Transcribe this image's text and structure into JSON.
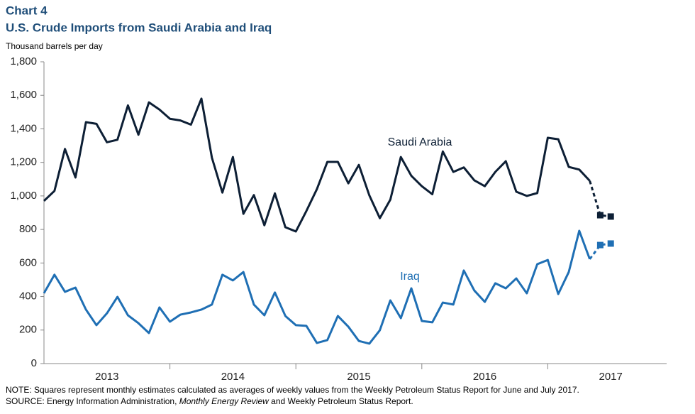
{
  "chart_data": {
    "type": "line",
    "title": "Chart 4",
    "subtitle": "U.S. Crude Imports from Saudi Arabia and Iraq",
    "y_label": "Thousand barrels per day",
    "categories": [
      null,
      null,
      null,
      null,
      null,
      null,
      "2013",
      null,
      null,
      null,
      null,
      null,
      null,
      null,
      null,
      null,
      null,
      null,
      "2014",
      null,
      null,
      null,
      null,
      null,
      null,
      null,
      null,
      null,
      null,
      null,
      "2015",
      null,
      null,
      null,
      null,
      null,
      null,
      null,
      null,
      null,
      null,
      null,
      "2016",
      null,
      null,
      null,
      null,
      null,
      null,
      null,
      null,
      null,
      null,
      null,
      "2017"
    ],
    "ylim": [
      0,
      1800
    ],
    "yticks": [
      0,
      200,
      400,
      600,
      800,
      {
        "value": 1000,
        "label": "1,000"
      },
      {
        "value": 1200,
        "label": "1,200"
      },
      {
        "value": 1400,
        "label": "1,400"
      },
      {
        "value": 1600,
        "label": "1,600"
      },
      {
        "value": 1800,
        "label": "1,800"
      }
    ],
    "series": [
      {
        "name": "Saudi Arabia",
        "color": "#0d1f35",
        "values": [
          970,
          1030,
          1280,
          1110,
          1440,
          1430,
          1320,
          1335,
          1540,
          1365,
          1558,
          1515,
          1460,
          1450,
          1425,
          1580,
          1228,
          1020,
          1232,
          893,
          1005,
          825,
          1015,
          813,
          788,
          910,
          1040,
          1203,
          1203,
          1075,
          1185,
          1003,
          867,
          978,
          1232,
          1120,
          1058,
          1010,
          1265,
          1143,
          1170,
          1093,
          1058,
          1143,
          1207,
          1025,
          1000,
          1017,
          1347,
          1338,
          1173,
          1157,
          1090,
          null,
          null
        ],
        "estimates": [
          null,
          null,
          null,
          null,
          null,
          null,
          null,
          null,
          null,
          null,
          null,
          null,
          null,
          null,
          null,
          null,
          null,
          null,
          null,
          null,
          null,
          null,
          null,
          null,
          null,
          null,
          null,
          null,
          null,
          null,
          null,
          null,
          null,
          null,
          null,
          null,
          null,
          null,
          null,
          null,
          null,
          null,
          null,
          null,
          null,
          null,
          null,
          null,
          null,
          null,
          null,
          null,
          null,
          885,
          877
        ]
      },
      {
        "name": "Iraq",
        "color": "#1f6fb4",
        "values": [
          420,
          530,
          428,
          453,
          322,
          229,
          300,
          398,
          288,
          241,
          182,
          335,
          250,
          292,
          305,
          322,
          352,
          530,
          496,
          546,
          352,
          288,
          424,
          284,
          229,
          225,
          123,
          140,
          284,
          220,
          135,
          119,
          199,
          377,
          271,
          449,
          254,
          246,
          364,
          352,
          555,
          436,
          368,
          479,
          449,
          508,
          419,
          593,
          618,
          415,
          546,
          792,
          623,
          null,
          null
        ],
        "estimates": [
          null,
          null,
          null,
          null,
          null,
          null,
          null,
          null,
          null,
          null,
          null,
          null,
          null,
          null,
          null,
          null,
          null,
          null,
          null,
          null,
          null,
          null,
          null,
          null,
          null,
          null,
          null,
          null,
          null,
          null,
          null,
          null,
          null,
          null,
          null,
          null,
          null,
          null,
          null,
          null,
          null,
          null,
          null,
          null,
          null,
          null,
          null,
          null,
          null,
          null,
          null,
          null,
          null,
          707,
          716
        ]
      }
    ],
    "note": "NOTE: Squares represent monthly estimates calculated as averages of weekly values from the Weekly Petroleum Status Report for June and July 2017.",
    "source": [
      "SOURCE: Energy Information Administration, ",
      "Monthly Energy Review",
      " and Weekly Petroleum Status Report."
    ]
  }
}
